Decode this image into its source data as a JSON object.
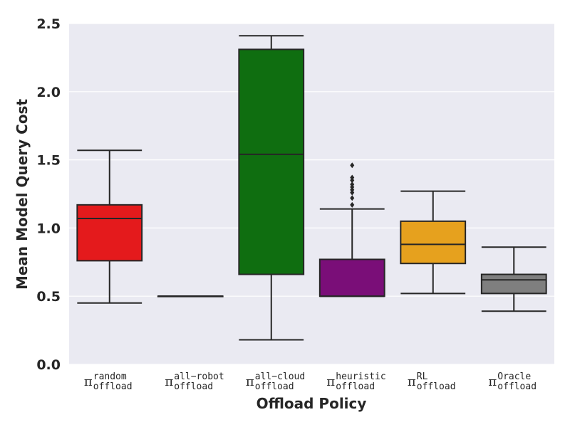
{
  "chart_data": {
    "type": "box",
    "xlabel": "Offload Policy",
    "ylabel": "Mean Model Query Cost",
    "ylim": [
      0,
      2.5
    ],
    "yticks": [
      "0.0",
      "0.5",
      "1.0",
      "1.5",
      "2.0",
      "2.5"
    ],
    "grid": true,
    "background": "#eaeaf2",
    "categories": [
      {
        "sub": "offload",
        "sup": "random"
      },
      {
        "sub": "offload",
        "sup": "all−robot"
      },
      {
        "sub": "offload",
        "sup": "all−cloud"
      },
      {
        "sub": "offload",
        "sup": "heuristic"
      },
      {
        "sub": "offload",
        "sup": "RL"
      },
      {
        "sub": "offload",
        "sup": "Oracle"
      }
    ],
    "boxes": [
      {
        "min": 0.45,
        "q1": 0.76,
        "median": 1.07,
        "q3": 1.17,
        "max": 1.57,
        "outliers": [],
        "color": "#e41a1c"
      },
      {
        "min": 0.5,
        "q1": 0.5,
        "median": 0.5,
        "q3": 0.5,
        "max": 0.5,
        "outliers": [],
        "color": "#1f77b4"
      },
      {
        "min": 0.18,
        "q1": 0.66,
        "median": 1.54,
        "q3": 2.31,
        "max": 2.41,
        "outliers": [],
        "color": "#0f6e10"
      },
      {
        "min": 0.5,
        "q1": 0.5,
        "median": 0.5,
        "q3": 0.77,
        "max": 1.14,
        "outliers": [
          1.17,
          1.22,
          1.26,
          1.28,
          1.3,
          1.32,
          1.35,
          1.37,
          1.46
        ],
        "color": "#7a0e78"
      },
      {
        "min": 0.52,
        "q1": 0.74,
        "median": 0.88,
        "q3": 1.05,
        "max": 1.27,
        "outliers": [],
        "color": "#e6a11e"
      },
      {
        "min": 0.39,
        "q1": 0.52,
        "median": 0.62,
        "q3": 0.66,
        "max": 0.86,
        "outliers": [],
        "color": "#7f7f7f"
      }
    ]
  }
}
